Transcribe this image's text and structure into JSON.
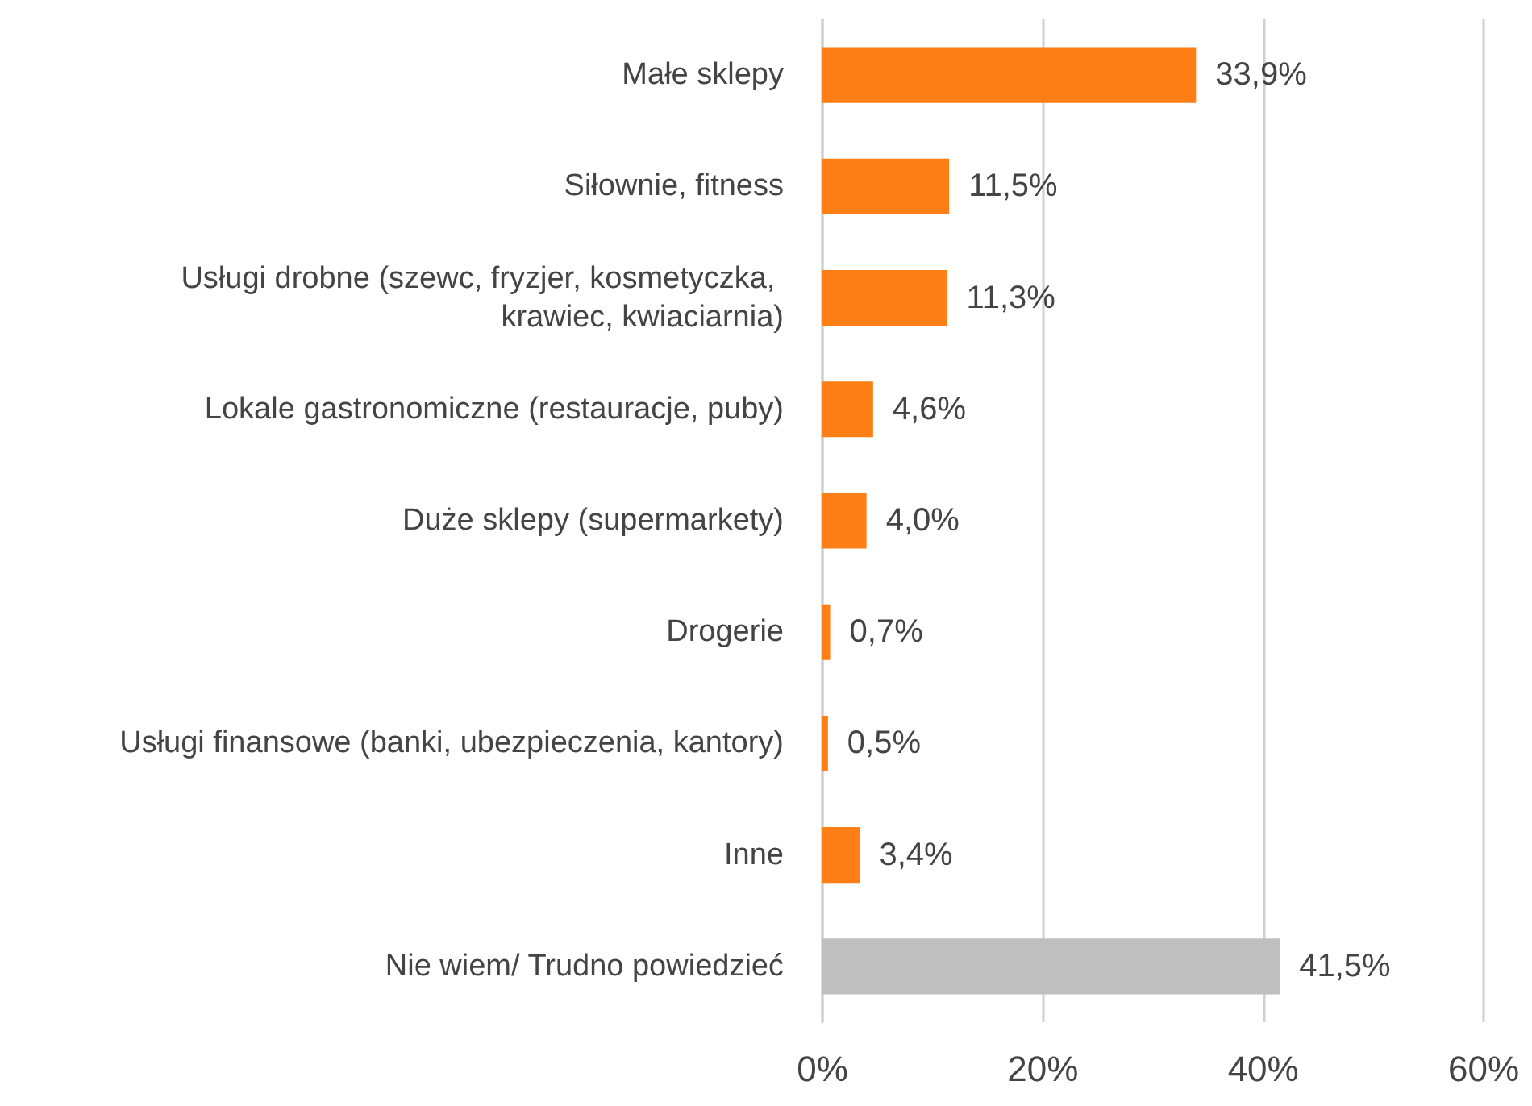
{
  "chart_data": {
    "type": "bar",
    "orientation": "horizontal",
    "categories": [
      "Małe sklepy",
      "Siłownie, fitness",
      "Usługi drobne (szewc, fryzjer, kosmetyczka, krawiec, kwiaciarnia)",
      "Lokale gastronomiczne (restauracje, puby)",
      "Duże sklepy (supermarkety)",
      "Drogerie",
      "Usługi finansowe (banki, ubezpieczenia, kantory)",
      "Inne",
      "Nie wiem/ Trudno powiedzieć"
    ],
    "values": [
      33.9,
      11.5,
      11.3,
      4.6,
      4.0,
      0.7,
      0.5,
      3.4,
      41.5
    ],
    "colors": [
      "#fd7f16",
      "#fd7f16",
      "#fd7f16",
      "#fd7f16",
      "#fd7f16",
      "#fd7f16",
      "#fd7f16",
      "#fd7f16",
      "#bfbfbf"
    ],
    "value_labels": [
      "33,9%",
      "11,5%",
      "11,3%",
      "4,6%",
      "4,0%",
      "0,7%",
      "0,5%",
      "3,4%",
      "41,5%"
    ],
    "xlim": [
      0,
      60
    ],
    "xticks": [
      {
        "value": 0,
        "label": "0%"
      },
      {
        "value": 20,
        "label": "20%"
      },
      {
        "value": 40,
        "label": "40%"
      },
      {
        "value": 60,
        "label": "60%"
      }
    ],
    "grid": "x"
  }
}
